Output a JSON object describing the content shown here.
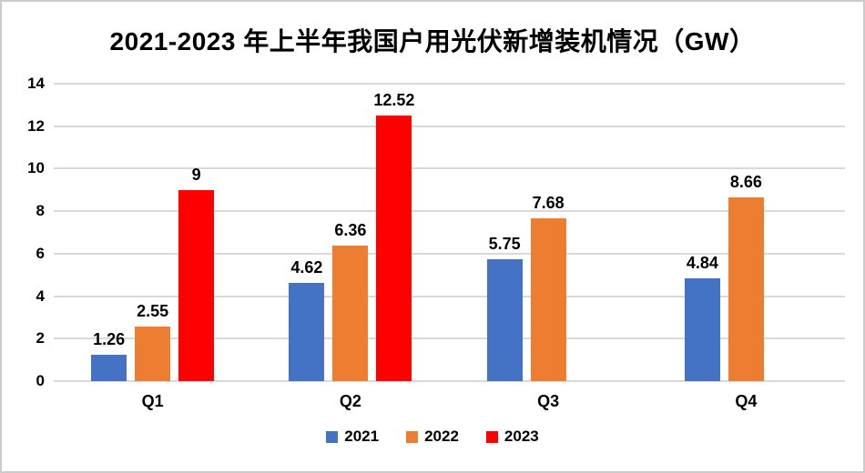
{
  "chart_data": {
    "type": "bar",
    "title": "2021-2023 年上半年我国户用光伏新增装机情况（GW）",
    "categories": [
      "Q1",
      "Q2",
      "Q3",
      "Q4"
    ],
    "series": [
      {
        "name": "2021",
        "color": "#4472C4",
        "values": [
          1.26,
          4.62,
          5.75,
          4.84
        ]
      },
      {
        "name": "2022",
        "color": "#ED7D31",
        "values": [
          2.55,
          6.36,
          7.68,
          8.66
        ]
      },
      {
        "name": "2023",
        "color": "#FF0000",
        "values": [
          9,
          12.52,
          null,
          null
        ]
      }
    ],
    "ylabel": "",
    "xlabel": "",
    "ylim": [
      0,
      14
    ],
    "ytick_step": 2,
    "grid": true,
    "gridline_color": "#D9D9D9",
    "value_labels": true,
    "legend_position": "bottom",
    "text_color": "#000000",
    "background_color": "#FFFFFF"
  }
}
